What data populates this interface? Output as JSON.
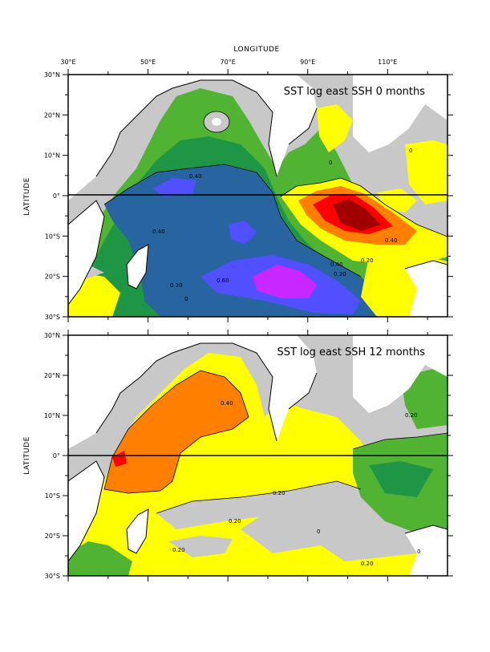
{
  "figure": {
    "x_axis_label": "LONGITUDE",
    "y_axis_label": "LATITUDE",
    "lon_ticks": [
      "30°E",
      "50°E",
      "70°E",
      "90°E",
      "110°E"
    ],
    "lat_ticks": [
      "30°N",
      "20°N",
      "10°N",
      "0°",
      "10°S",
      "20°S",
      "30°S"
    ]
  },
  "colors": {
    "land": "#ffffff",
    "grey": "#c8c8c8",
    "yellow": "#ffff00",
    "orange": "#ff8000",
    "red": "#ff0000",
    "darkred": "#a00000",
    "lightgreen": "#50b432",
    "green": "#1e9646",
    "blue": "#2864a0",
    "violet": "#5050ff",
    "magenta": "#c828ff"
  },
  "panels": [
    {
      "title": "SST log east SSH 0 months",
      "contour_labels": [
        "0.40",
        "0",
        "0.40",
        "0.40",
        "0.20",
        "0.20",
        "0.40",
        "0.20",
        "0.60",
        "0",
        "0"
      ]
    },
    {
      "title": "SST log east SSH 12 months",
      "contour_labels": [
        "0.40",
        "0.20",
        "0.20",
        "0.20",
        "0",
        "0.20",
        "0.20",
        "0"
      ]
    }
  ],
  "chart_data": {
    "type": "heatmap",
    "x_range": [
      30,
      125
    ],
    "y_range": [
      -30,
      30
    ],
    "panels": [
      "SST log east SSH 0 months",
      "SST log east SSH 12 months"
    ]
  }
}
